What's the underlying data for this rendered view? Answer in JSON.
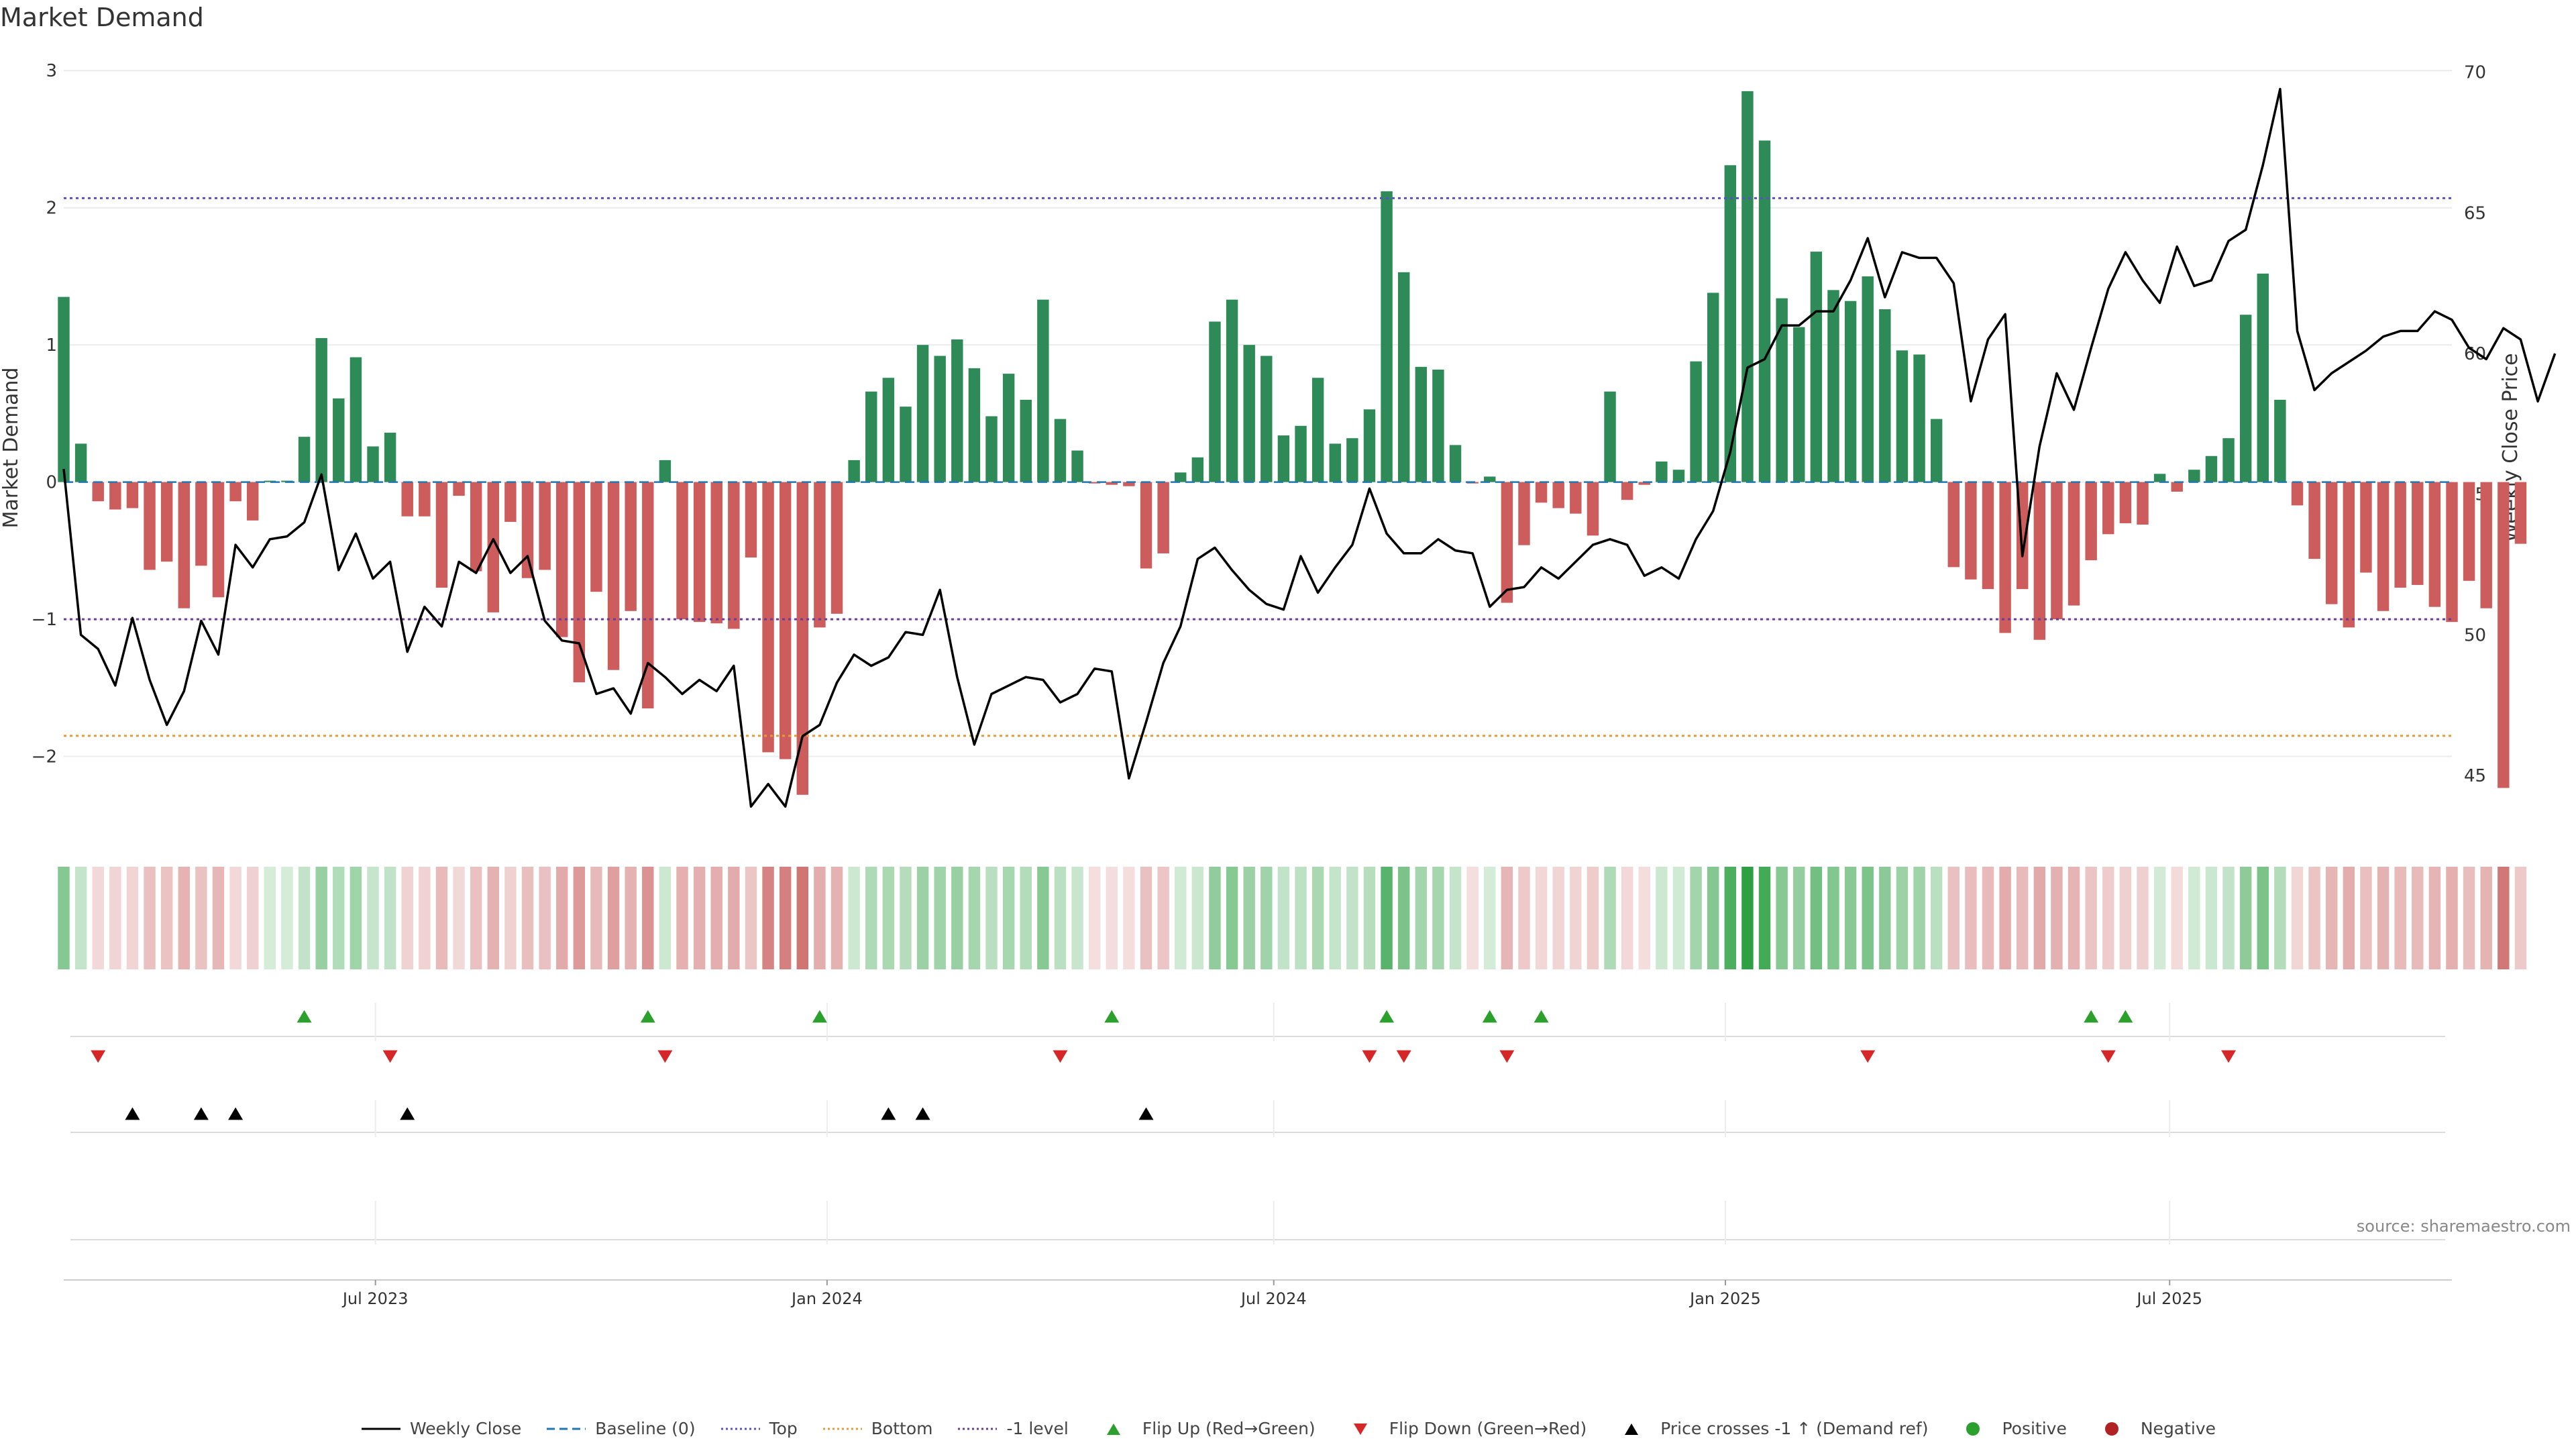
{
  "title": "Market Demand",
  "source": "source: sharemaestro.com",
  "colors": {
    "positive": "#2e8b57",
    "negative": "#cd5c5c",
    "price_line": "#000000",
    "baseline": "#1f77b4",
    "top": "#5a4fcf",
    "bottom": "#e69b3a",
    "minus_one": "#6a3d9a",
    "flip_up": "#2ca02c",
    "flip_down": "#d62728",
    "cross": "#000000",
    "positive_dot": "#2ca02c",
    "negative_dot": "#b22222"
  },
  "chart_data": {
    "type": "bar",
    "title": "Market Demand",
    "ylabel": "Market Demand",
    "y2label": "Weekly Close Price",
    "ylim": [
      -2.55,
      3.05
    ],
    "y2lim": [
      43,
      70.3
    ],
    "yticks": [
      -2,
      -1,
      0,
      1,
      2,
      3
    ],
    "yticklabels": [
      "−2",
      "−1",
      "0",
      "1",
      "2",
      "3"
    ],
    "y2ticks": [
      45,
      50,
      55,
      60,
      65,
      70
    ],
    "x_start": "2023-02-24",
    "x_end": "2025-10-24",
    "xticks": [
      {
        "date": "2023-07-01",
        "label": "Jul 2023"
      },
      {
        "date": "2024-01-01",
        "label": "Jan 2024"
      },
      {
        "date": "2024-07-01",
        "label": "Jul 2024"
      },
      {
        "date": "2025-01-01",
        "label": "Jan 2025"
      },
      {
        "date": "2025-07-01",
        "label": "Jul 2025"
      }
    ],
    "first_week": "2023-02-24",
    "week_step_days": 7,
    "reference_lines": {
      "baseline": 0,
      "top": 2.07,
      "bottom": -1.85,
      "minus_one": -1
    },
    "demand": [
      1.35,
      0.28,
      -0.14,
      -0.2,
      -0.19,
      -0.64,
      -0.58,
      -0.92,
      -0.61,
      -0.84,
      -0.14,
      -0.28,
      0.01,
      0.01,
      0.33,
      1.05,
      0.61,
      0.91,
      0.26,
      0.36,
      -0.25,
      -0.25,
      -0.77,
      -0.1,
      -0.65,
      -0.95,
      -0.29,
      -0.7,
      -0.64,
      -1.13,
      -1.46,
      -0.8,
      -1.37,
      -0.94,
      -1.65,
      0.16,
      -1.0,
      -1.02,
      -1.03,
      -1.07,
      -0.55,
      -1.97,
      -2.02,
      -2.28,
      -1.06,
      -0.96,
      0.16,
      0.66,
      0.76,
      0.55,
      1.0,
      0.92,
      1.04,
      0.83,
      0.48,
      0.79,
      0.6,
      1.33,
      0.46,
      0.23,
      -0.01,
      -0.02,
      -0.03,
      -0.63,
      -0.52,
      0.07,
      0.18,
      1.17,
      1.33,
      1.0,
      0.92,
      0.34,
      0.41,
      0.76,
      0.28,
      0.32,
      0.53,
      2.12,
      1.53,
      0.84,
      0.82,
      0.27,
      -0.01,
      0.04,
      -0.88,
      -0.46,
      -0.15,
      -0.19,
      -0.23,
      -0.39,
      0.66,
      -0.13,
      -0.02,
      0.15,
      0.09,
      0.88,
      1.38,
      2.31,
      2.85,
      2.49,
      1.34,
      1.13,
      1.68,
      1.4,
      1.32,
      1.5,
      1.26,
      0.96,
      0.93,
      0.46,
      -0.62,
      -0.71,
      -0.78,
      -1.1,
      -0.78,
      -1.15,
      -1.0,
      -0.9,
      -0.57,
      -0.38,
      -0.3,
      -0.31,
      0.06,
      -0.07,
      0.09,
      0.19,
      0.32,
      1.22,
      1.52,
      0.6,
      -0.17,
      -0.56,
      -0.89,
      -1.06,
      -0.66,
      -0.94,
      -0.77,
      -0.75,
      -0.91,
      -1.02,
      -0.72,
      -0.92,
      -2.23,
      -0.45
    ],
    "close": [
      55.9,
      50.0,
      49.5,
      48.2,
      50.6,
      48.4,
      46.8,
      48.0,
      50.5,
      49.3,
      53.2,
      52.4,
      53.4,
      53.5,
      54.0,
      55.7,
      52.3,
      53.6,
      52.0,
      52.6,
      49.4,
      51.0,
      50.3,
      52.6,
      52.2,
      53.4,
      52.2,
      52.8,
      50.5,
      49.8,
      49.7,
      47.9,
      48.1,
      47.2,
      49.0,
      48.5,
      47.9,
      48.4,
      48.0,
      48.9,
      43.9,
      44.7,
      43.9,
      46.4,
      46.8,
      48.3,
      49.3,
      48.9,
      49.2,
      50.1,
      50.0,
      51.6,
      48.5,
      46.1,
      47.9,
      48.2,
      48.5,
      48.4,
      47.6,
      47.9,
      48.8,
      48.7,
      44.9,
      46.9,
      49.0,
      50.3,
      52.7,
      53.1,
      52.3,
      51.6,
      51.1,
      50.9,
      52.8,
      51.5,
      52.4,
      53.2,
      55.2,
      53.6,
      52.9,
      52.9,
      53.4,
      53.0,
      52.9,
      51.0,
      51.6,
      51.7,
      52.4,
      52.0,
      52.6,
      53.2,
      53.4,
      53.2,
      52.1,
      52.4,
      52.0,
      53.4,
      54.4,
      56.5,
      59.5,
      59.8,
      61.0,
      61.0,
      61.5,
      61.5,
      62.6,
      64.1,
      62.0,
      63.6,
      63.4,
      63.4,
      62.5,
      58.3,
      60.5,
      61.4,
      52.8,
      56.7,
      59.3,
      58.0,
      60.2,
      62.3,
      63.6,
      62.6,
      61.8,
      63.8,
      62.4,
      62.6,
      64.0,
      64.4,
      66.7,
      69.4,
      60.8,
      58.7,
      59.3,
      59.7,
      60.1,
      60.6,
      60.8,
      60.8,
      61.5,
      61.2,
      60.2,
      59.8,
      60.9,
      60.5,
      58.3,
      60.0
    ],
    "flip_up": [
      "2023-06-02",
      "2023-10-20",
      "2023-12-29",
      "2024-04-26",
      "2024-08-16",
      "2024-09-27",
      "2024-10-18",
      "2025-05-30",
      "2025-06-13"
    ],
    "flip_down": [
      "2023-03-10",
      "2023-07-07",
      "2023-10-27",
      "2024-04-05",
      "2024-08-09",
      "2024-08-23",
      "2024-10-04",
      "2025-02-28",
      "2025-06-06",
      "2025-07-25"
    ],
    "price_crosses": [
      "2023-03-24",
      "2023-04-21",
      "2023-05-05",
      "2023-07-14",
      "2024-01-26",
      "2024-02-09",
      "2024-05-10"
    ],
    "legend": [
      {
        "label": "Weekly Close",
        "icon": "solid-line-icon",
        "color": "#000000"
      },
      {
        "label": "Baseline (0)",
        "icon": "dashed-line-icon",
        "color": "#1f77b4"
      },
      {
        "label": "Top",
        "icon": "dotted-line-icon",
        "color": "#5a4fcf"
      },
      {
        "label": "Bottom",
        "icon": "dotted-line-icon",
        "color": "#e69b3a"
      },
      {
        "label": "-1 level",
        "icon": "dotted-line-icon",
        "color": "#6a3d9a"
      },
      {
        "label": "Flip Up (Red→Green)",
        "icon": "triangle-up-icon",
        "color": "#2ca02c"
      },
      {
        "label": "Flip Down (Green→Red)",
        "icon": "triangle-down-icon",
        "color": "#d62728"
      },
      {
        "label": "Price crosses -1 ↑ (Demand ref)",
        "icon": "triangle-up-icon",
        "color": "#000000"
      },
      {
        "label": "Positive",
        "icon": "dot-icon",
        "color": "#2ca02c"
      },
      {
        "label": "Negative",
        "icon": "dot-icon",
        "color": "#b22222"
      }
    ]
  }
}
